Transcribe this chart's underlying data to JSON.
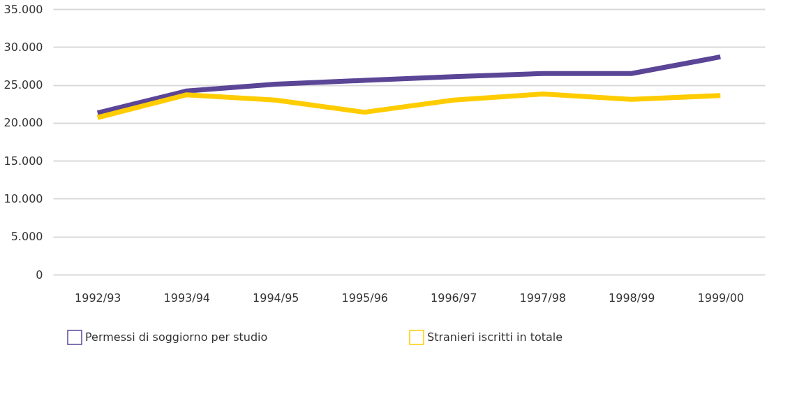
{
  "chart_data": {
    "type": "line",
    "categories": [
      "1992/93",
      "1993/94",
      "1994/95",
      "1995/96",
      "1996/97",
      "1997/98",
      "1998/99",
      "1999/00"
    ],
    "series": [
      {
        "name": "Permessi di soggiorno per studio",
        "color": "#5b4596",
        "values": [
          21300,
          24200,
          25100,
          25600,
          26100,
          26500,
          26500,
          28700
        ]
      },
      {
        "name": "Stranieri iscritti in totale",
        "color": "#ffcc00",
        "values": [
          20700,
          23700,
          23000,
          21400,
          23000,
          23800,
          23100,
          23600
        ]
      }
    ],
    "ylim": [
      0,
      35000
    ],
    "yticks": [
      {
        "value": 0,
        "label": "0"
      },
      {
        "value": 5000,
        "label": "5.000"
      },
      {
        "value": 10000,
        "label": "10.000"
      },
      {
        "value": 15000,
        "label": "15.000"
      },
      {
        "value": 20000,
        "label": "20.000"
      },
      {
        "value": 25000,
        "label": "25.000"
      },
      {
        "value": 30000,
        "label": "30.000"
      },
      {
        "value": 35000,
        "label": "35.000"
      }
    ],
    "grid": "y",
    "legend": "bottom",
    "marker": "none",
    "line_style": "solid"
  }
}
